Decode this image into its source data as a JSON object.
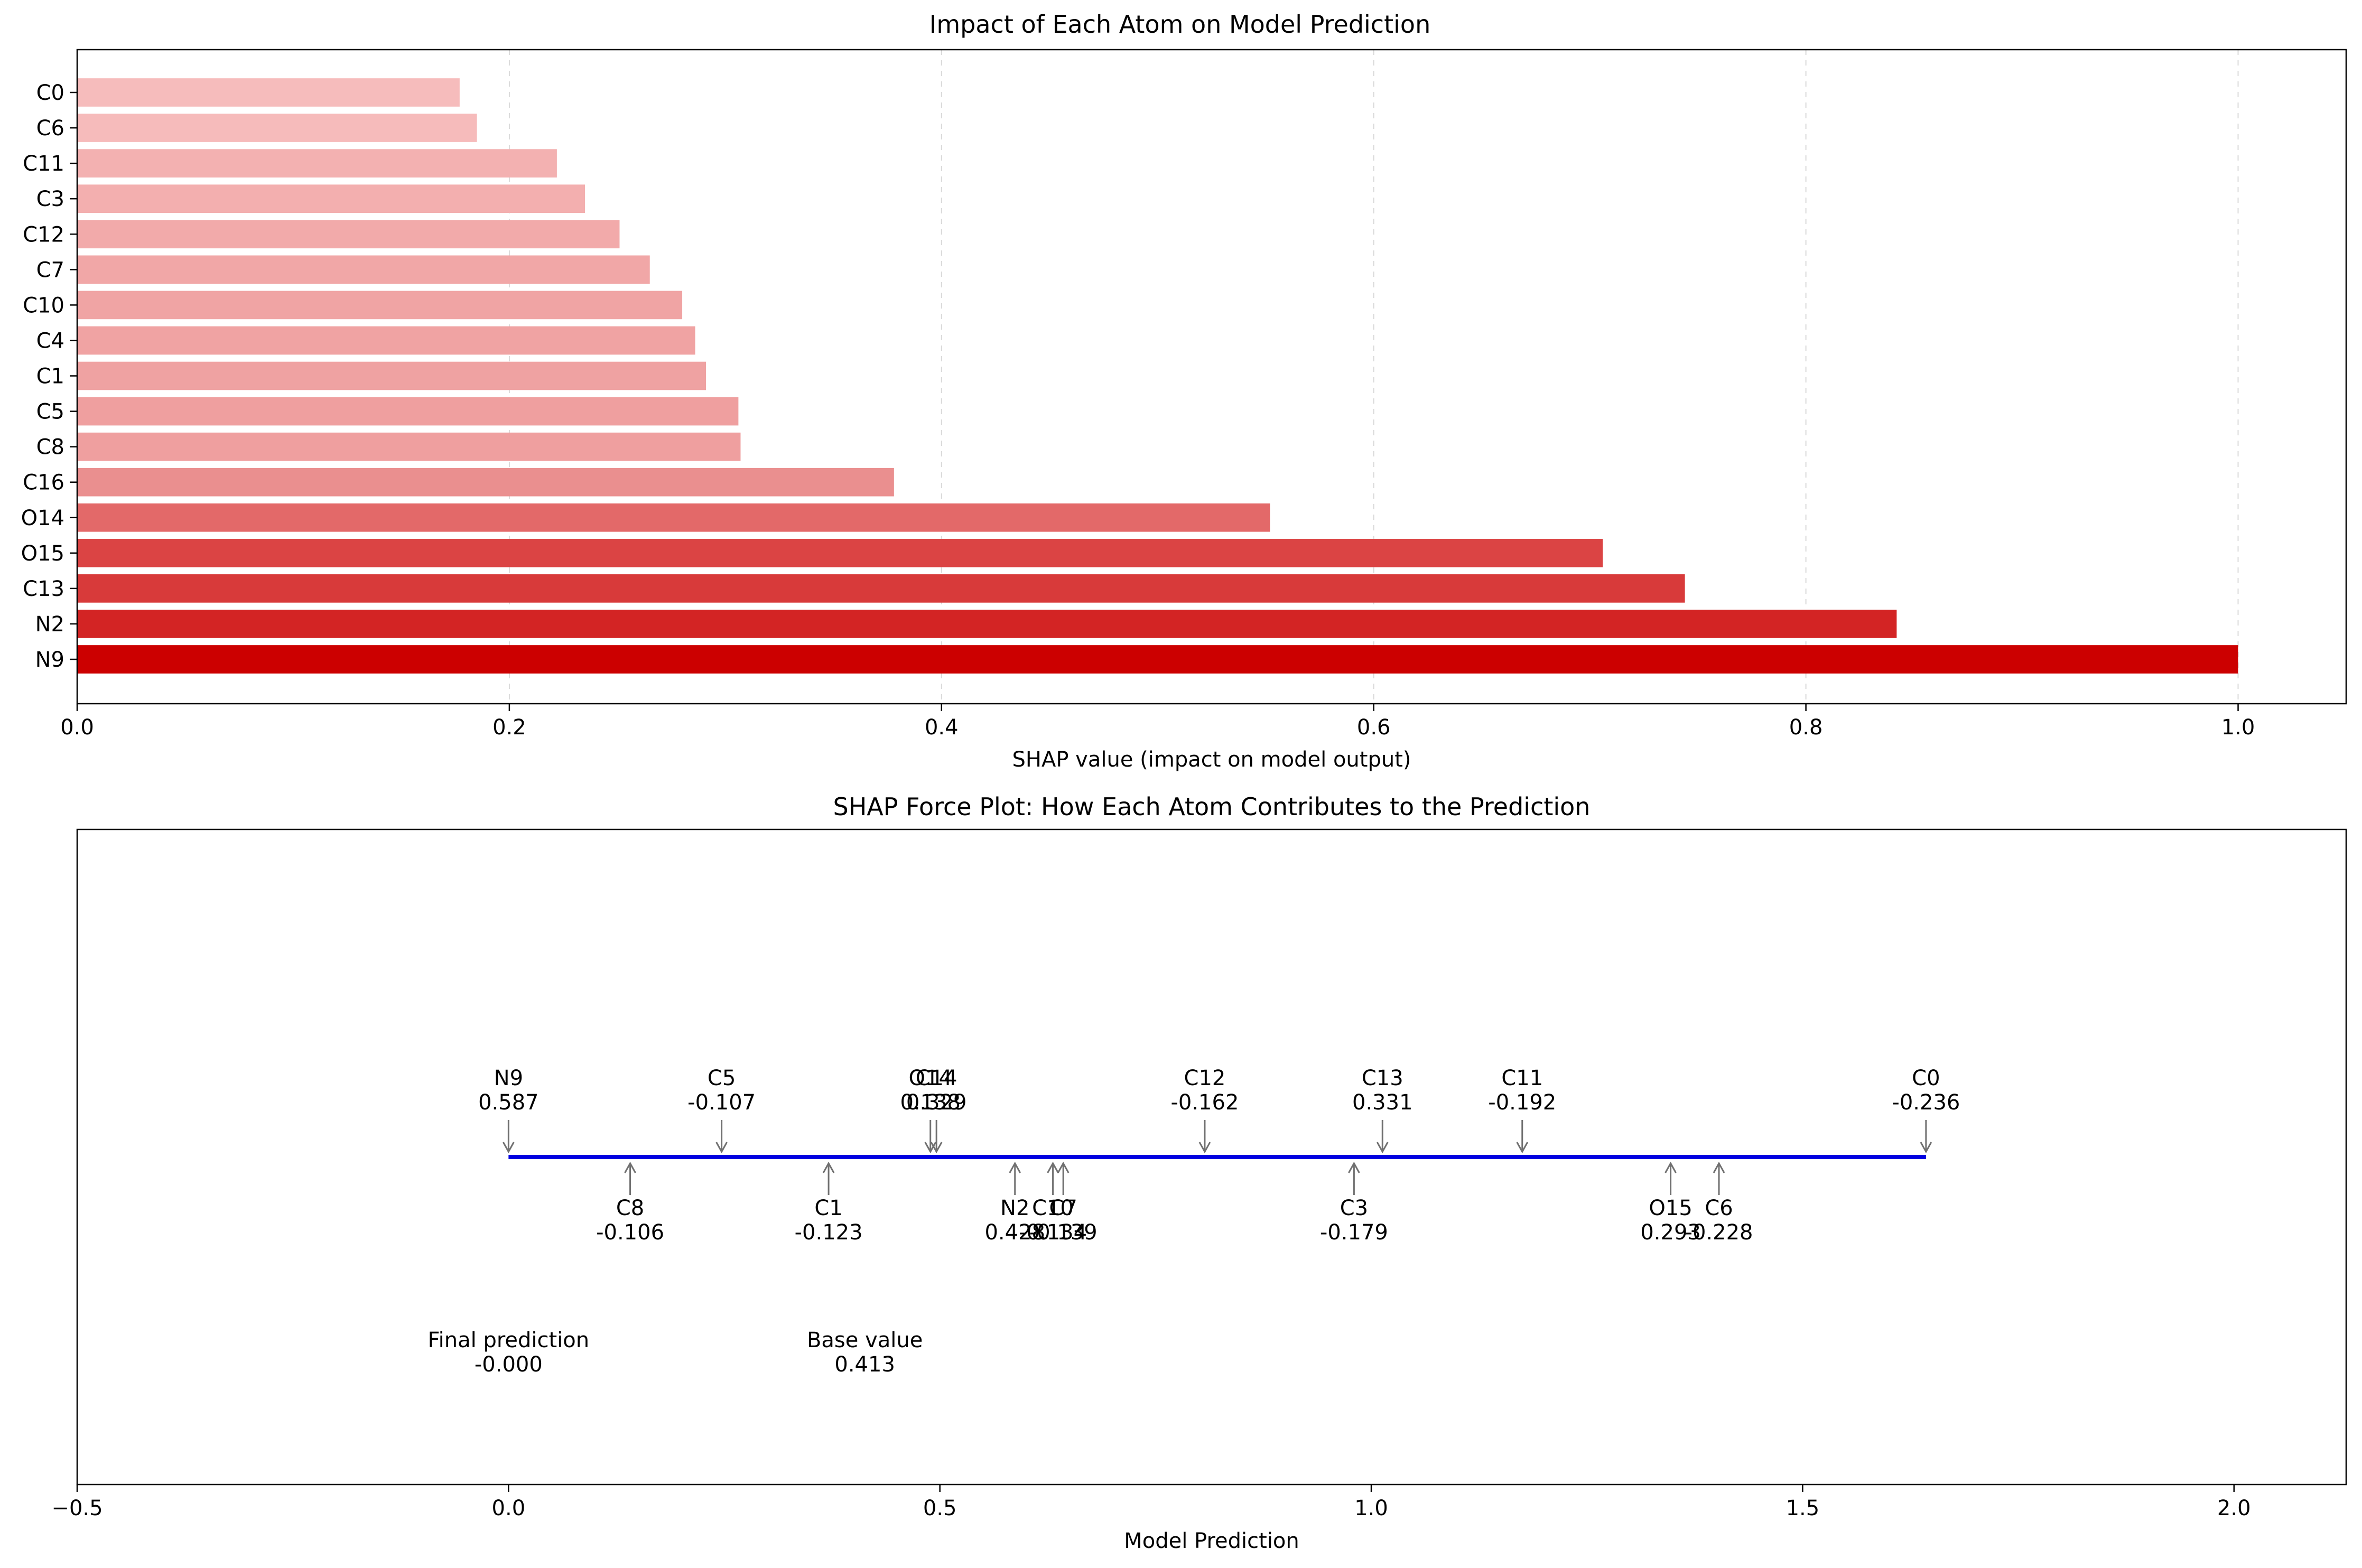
{
  "chart_data": [
    {
      "type": "bar",
      "orientation": "horizontal",
      "title": "Impact of Each Atom on Model Prediction",
      "xlabel": "SHAP value (impact on model output)",
      "ylabel": "",
      "xlim": [
        0,
        1.05
      ],
      "xticks": [
        0.0,
        0.2,
        0.4,
        0.6,
        0.8,
        1.0
      ],
      "xtick_labels": [
        "0.0",
        "0.2",
        "0.4",
        "0.6",
        "0.8",
        "1.0"
      ],
      "grid": "x-dashed",
      "categories": [
        "C0",
        "C6",
        "C11",
        "C3",
        "C12",
        "C7",
        "C10",
        "C4",
        "C1",
        "C5",
        "C8",
        "C16",
        "O14",
        "O15",
        "C13",
        "N2",
        "N9"
      ],
      "values": [
        0.177,
        0.185,
        0.222,
        0.235,
        0.251,
        0.265,
        0.28,
        0.286,
        0.291,
        0.306,
        0.307,
        0.378,
        0.552,
        0.706,
        0.744,
        0.842,
        1.0
      ],
      "colors": [
        "#f6bcbc",
        "#f6bbbb",
        "#f3b1b1",
        "#f3afaf",
        "#f2aaaa",
        "#f1a7a7",
        "#f0a4a4",
        "#f0a3a3",
        "#efa2a2",
        "#ef9f9f",
        "#ef9f9f",
        "#ea8f8f",
        "#e36969",
        "#db4444",
        "#d83a3a",
        "#d32424",
        "#cc0000"
      ]
    },
    {
      "type": "force",
      "title": "SHAP Force Plot: How Each Atom Contributes to the Prediction",
      "xlabel": "Model Prediction",
      "ylabel": "",
      "xlim": [
        -0.5,
        2.13
      ],
      "xticks": [
        -0.5,
        0.0,
        0.5,
        1.0,
        1.5,
        2.0
      ],
      "xtick_labels": [
        "−0.5",
        "0.0",
        "0.5",
        "1.0",
        "1.5",
        "2.0"
      ],
      "line": {
        "start": 0.0,
        "end": 1.643,
        "color": "#0000e0"
      },
      "arrow_color": "#707070",
      "above": [
        {
          "name": "N9",
          "value": "0.587",
          "x": 0.0
        },
        {
          "name": "C5",
          "value": "-0.107",
          "x": 0.247
        },
        {
          "name": "C14",
          "value": "0.329",
          "x": 0.496
        },
        {
          "name": "O14",
          "value": "0.138",
          "x": 0.489
        },
        {
          "name": "C12",
          "value": "-0.162",
          "x": 0.807
        },
        {
          "name": "C13",
          "value": "0.331",
          "x": 1.013
        },
        {
          "name": "C11",
          "value": "-0.192",
          "x": 1.175
        },
        {
          "name": "C0",
          "value": "-0.236",
          "x": 1.643
        }
      ],
      "below": [
        {
          "name": "C8",
          "value": "-0.106",
          "x": 0.141
        },
        {
          "name": "C1",
          "value": "-0.123",
          "x": 0.371
        },
        {
          "name": "N2",
          "value": "0.428",
          "x": 0.587
        },
        {
          "name": "C10",
          "value": "-0.134",
          "x": 0.631
        },
        {
          "name": "C7",
          "value": "-0.139",
          "x": 0.643
        },
        {
          "name": "C3",
          "value": "-0.179",
          "x": 0.98
        },
        {
          "name": "O15",
          "value": "0.293",
          "x": 1.347
        },
        {
          "name": "C6",
          "value": "-0.228",
          "x": 1.403
        }
      ],
      "annotations": [
        {
          "name": "Final prediction",
          "value": "-0.000",
          "x": 0.0
        },
        {
          "name": "Base value",
          "value": "0.413",
          "x": 0.413
        }
      ]
    }
  ]
}
